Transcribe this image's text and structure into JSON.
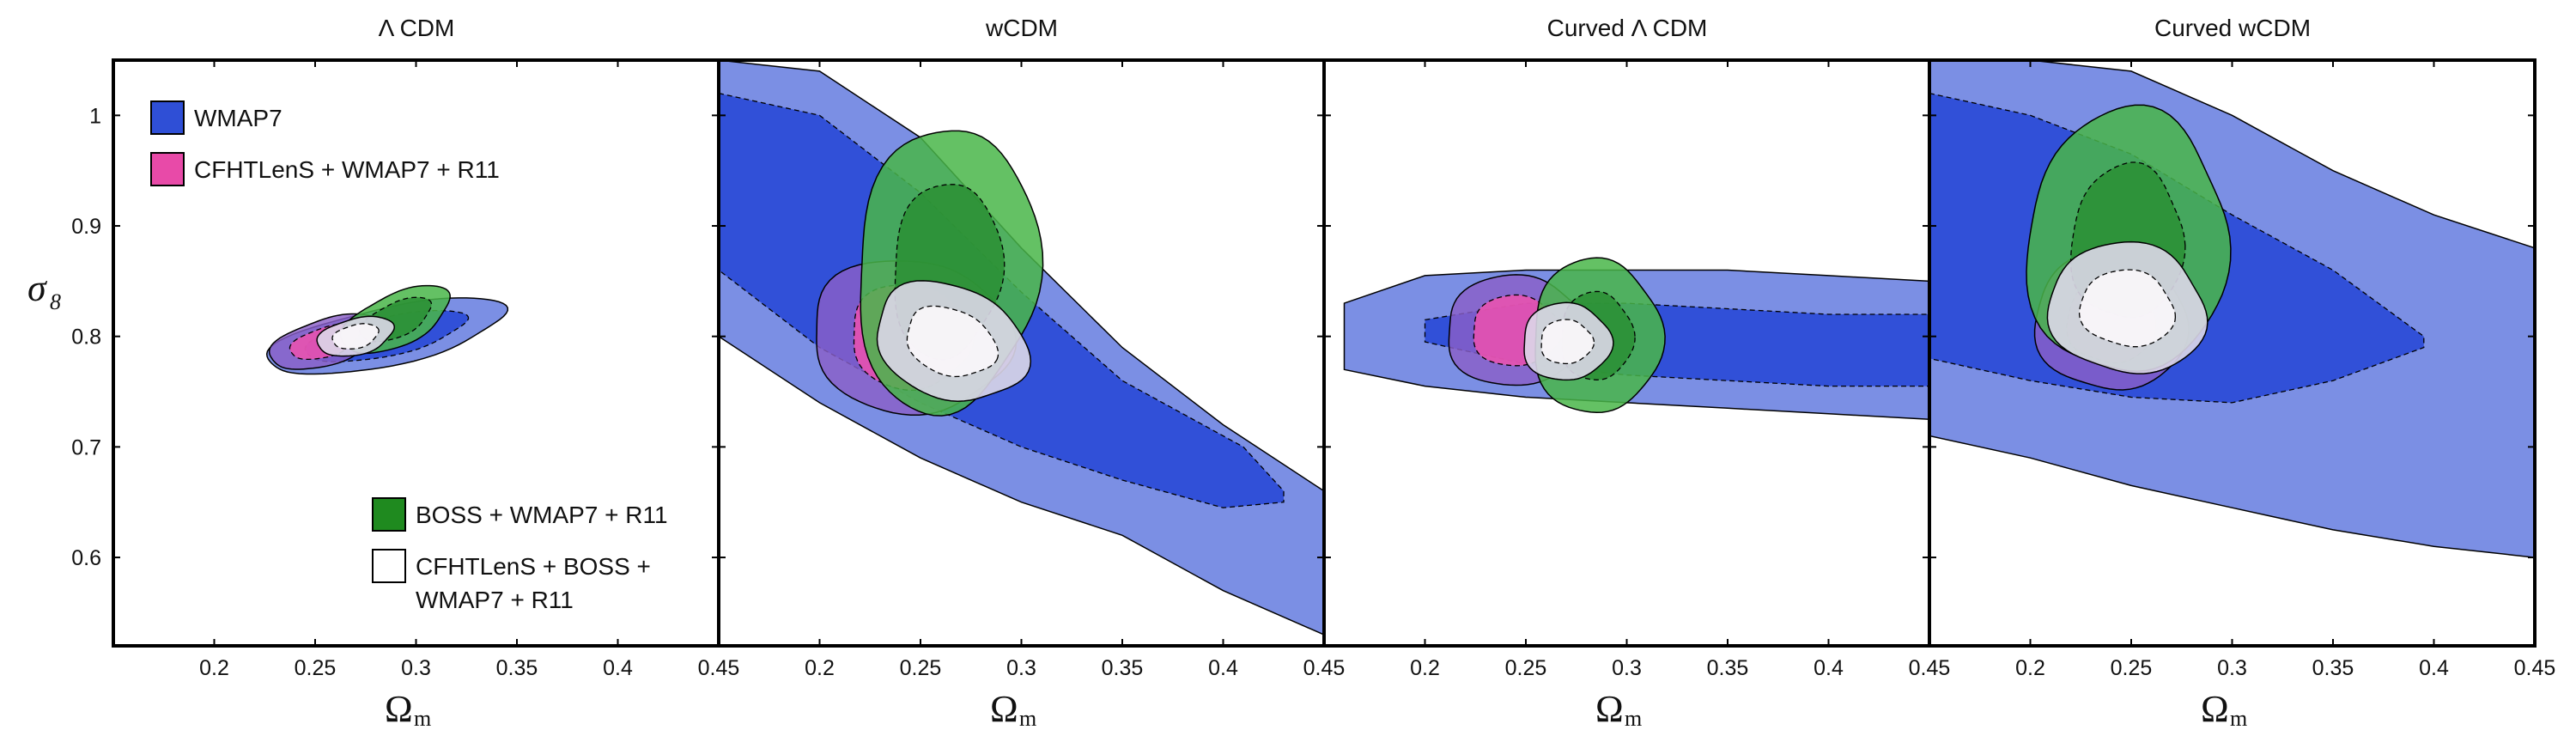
{
  "chart_data": {
    "type": "contour",
    "xlabel": "Ω",
    "xlabel_sub": "m",
    "ylabel": "σ",
    "ylabel_sub": "8",
    "xlim": [
      0.15,
      0.45
    ],
    "ylim": [
      0.52,
      1.05
    ],
    "x_ticks": [
      0.2,
      0.25,
      0.3,
      0.35,
      0.4,
      0.45
    ],
    "x_tick_labels": [
      "0.2",
      "0.25",
      "0.3",
      "0.35",
      "0.4",
      "0.45"
    ],
    "y_ticks": [
      0.6,
      0.7,
      0.8,
      0.9,
      1.0
    ],
    "y_tick_labels": [
      "0.6",
      "0.7",
      "0.8",
      "0.9",
      "1"
    ],
    "legend": [
      {
        "label": "WMAP7",
        "color": "#2f4fd6"
      },
      {
        "label": "CFHTLenS + WMAP7 + R11",
        "color": "#e84aa8"
      },
      {
        "label": "BOSS + WMAP7 + R11",
        "color": "#1f8a1f"
      },
      {
        "label": "CFHTLenS + BOSS +",
        "label2": "WMAP7 + R11",
        "color": "#ffffff"
      }
    ],
    "colors": {
      "wmap_outer": "#7b8fe4",
      "wmap_inner": "#3150d8",
      "pink_outer": "#8a5fc8",
      "pink_inner": "#f251ad",
      "green_outer": "#49b649",
      "green_inner": "#2a8f34",
      "white_outer": "#dcd7e8",
      "white_inner": "#fbf7fb"
    },
    "panels": [
      {
        "title": "Λ CDM",
        "wmap": {
          "cx": 0.285,
          "cy": 0.8,
          "a1": 0.062,
          "b1": 0.027,
          "ang1": 18,
          "a2": 0.042,
          "b2": 0.018,
          "ang2": 18
        },
        "pink": {
          "cx": 0.255,
          "cy": 0.795,
          "a1": 0.03,
          "b1": 0.022,
          "ang1": 25,
          "a2": 0.019,
          "b2": 0.014,
          "ang2": 25
        },
        "green": {
          "cx": 0.29,
          "cy": 0.815,
          "a1": 0.032,
          "b1": 0.026,
          "ang1": 35,
          "a2": 0.021,
          "b2": 0.017,
          "ang2": 35
        },
        "white": {
          "cx": 0.27,
          "cy": 0.8,
          "a1": 0.02,
          "b1": 0.017,
          "ang1": 20,
          "a2": 0.012,
          "b2": 0.011,
          "ang2": 20
        }
      },
      {
        "title": "wCDM",
        "wmap_band": {
          "outer_top": [
            [
              0.15,
              1.05
            ],
            [
              0.2,
              1.04
            ],
            [
              0.25,
              0.98
            ],
            [
              0.3,
              0.88
            ],
            [
              0.35,
              0.79
            ],
            [
              0.4,
              0.72
            ],
            [
              0.45,
              0.66
            ],
            [
              0.45,
              0.6
            ]
          ],
          "outer_bottom": [
            [
              0.15,
              0.8
            ],
            [
              0.2,
              0.74
            ],
            [
              0.25,
              0.69
            ],
            [
              0.3,
              0.65
            ],
            [
              0.35,
              0.62
            ],
            [
              0.4,
              0.57
            ],
            [
              0.45,
              0.53
            ]
          ],
          "inner_top": [
            [
              0.15,
              1.02
            ],
            [
              0.2,
              1.0
            ],
            [
              0.25,
              0.93
            ],
            [
              0.3,
              0.84
            ],
            [
              0.35,
              0.76
            ],
            [
              0.41,
              0.7
            ],
            [
              0.43,
              0.66
            ]
          ],
          "inner_bottom": [
            [
              0.15,
              0.86
            ],
            [
              0.2,
              0.79
            ],
            [
              0.25,
              0.74
            ],
            [
              0.3,
              0.7
            ],
            [
              0.35,
              0.67
            ],
            [
              0.4,
              0.645
            ],
            [
              0.43,
              0.65
            ]
          ]
        },
        "pink": {
          "cx": 0.245,
          "cy": 0.8,
          "a1": 0.05,
          "b1": 0.07,
          "ang1": -10,
          "a2": 0.03,
          "b2": 0.048,
          "ang2": -10
        },
        "green": {
          "cx": 0.263,
          "cy": 0.86,
          "a1": 0.045,
          "b1": 0.13,
          "ang1": -8,
          "a2": 0.027,
          "b2": 0.08,
          "ang2": -8
        },
        "white": {
          "cx": 0.265,
          "cy": 0.795,
          "a1": 0.042,
          "b1": 0.055,
          "ang1": -30,
          "a2": 0.025,
          "b2": 0.032,
          "ang2": -30
        }
      },
      {
        "title": "Curved Λ CDM",
        "wmap_band": {
          "outer_top": [
            [
              0.16,
              0.83
            ],
            [
              0.2,
              0.855
            ],
            [
              0.25,
              0.86
            ],
            [
              0.3,
              0.86
            ],
            [
              0.35,
              0.86
            ],
            [
              0.4,
              0.855
            ],
            [
              0.45,
              0.85
            ]
          ],
          "outer_bottom": [
            [
              0.16,
              0.77
            ],
            [
              0.2,
              0.755
            ],
            [
              0.25,
              0.745
            ],
            [
              0.3,
              0.74
            ],
            [
              0.35,
              0.735
            ],
            [
              0.4,
              0.73
            ],
            [
              0.45,
              0.725
            ]
          ],
          "inner_top": [
            [
              0.2,
              0.815
            ],
            [
              0.25,
              0.83
            ],
            [
              0.3,
              0.83
            ],
            [
              0.35,
              0.825
            ],
            [
              0.4,
              0.82
            ],
            [
              0.45,
              0.82
            ]
          ],
          "inner_bottom": [
            [
              0.2,
              0.795
            ],
            [
              0.25,
              0.775
            ],
            [
              0.3,
              0.765
            ],
            [
              0.35,
              0.76
            ],
            [
              0.4,
              0.755
            ],
            [
              0.45,
              0.755
            ]
          ]
        },
        "pink": {
          "cx": 0.245,
          "cy": 0.805,
          "a1": 0.035,
          "b1": 0.05,
          "ang1": 0,
          "a2": 0.022,
          "b2": 0.032,
          "ang2": 0
        },
        "green": {
          "cx": 0.285,
          "cy": 0.8,
          "a1": 0.032,
          "b1": 0.07,
          "ang1": 0,
          "a2": 0.018,
          "b2": 0.04,
          "ang2": 0
        },
        "white": {
          "cx": 0.27,
          "cy": 0.795,
          "a1": 0.022,
          "b1": 0.035,
          "ang1": 0,
          "a2": 0.013,
          "b2": 0.02,
          "ang2": 0
        }
      },
      {
        "title": "Curved wCDM",
        "wmap_band": {
          "outer_top": [
            [
              0.15,
              1.05
            ],
            [
              0.2,
              1.05
            ],
            [
              0.25,
              1.04
            ],
            [
              0.3,
              1.0
            ],
            [
              0.35,
              0.95
            ],
            [
              0.4,
              0.91
            ],
            [
              0.45,
              0.88
            ]
          ],
          "outer_bottom": [
            [
              0.15,
              0.71
            ],
            [
              0.2,
              0.69
            ],
            [
              0.25,
              0.665
            ],
            [
              0.3,
              0.645
            ],
            [
              0.35,
              0.625
            ],
            [
              0.4,
              0.61
            ],
            [
              0.45,
              0.6
            ]
          ],
          "inner_top": [
            [
              0.15,
              1.02
            ],
            [
              0.2,
              1.0
            ],
            [
              0.25,
              0.965
            ],
            [
              0.3,
              0.91
            ],
            [
              0.35,
              0.86
            ],
            [
              0.395,
              0.8
            ]
          ],
          "inner_bottom": [
            [
              0.15,
              0.78
            ],
            [
              0.2,
              0.76
            ],
            [
              0.25,
              0.745
            ],
            [
              0.3,
              0.74
            ],
            [
              0.35,
              0.76
            ],
            [
              0.395,
              0.79
            ]
          ]
        },
        "pink": {
          "cx": 0.24,
          "cy": 0.815,
          "a1": 0.038,
          "b1": 0.065,
          "ang1": -10,
          "a2": 0.022,
          "b2": 0.04,
          "ang2": -10
        },
        "green": {
          "cx": 0.248,
          "cy": 0.885,
          "a1": 0.05,
          "b1": 0.12,
          "ang1": -5,
          "a2": 0.028,
          "b2": 0.07,
          "ang2": -5
        },
        "white": {
          "cx": 0.248,
          "cy": 0.825,
          "a1": 0.04,
          "b1": 0.06,
          "ang1": -15,
          "a2": 0.024,
          "b2": 0.035,
          "ang2": -15
        }
      }
    ]
  }
}
